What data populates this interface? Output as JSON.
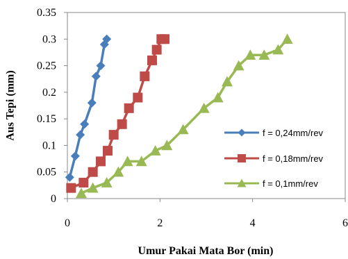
{
  "chart_data": {
    "type": "line",
    "xlabel": "Umur Pakai Mata Bor (min)",
    "ylabel": "Aus Tepi (mm)",
    "xlim": [
      0,
      6
    ],
    "ylim": [
      0,
      0.35
    ],
    "xticks": [
      0,
      2,
      4,
      6
    ],
    "yticks": [
      0,
      0.05,
      0.1,
      0.15,
      0.2,
      0.25,
      0.3,
      0.35
    ],
    "xtick_labels": [
      "0",
      "2",
      "4",
      "6"
    ],
    "ytick_labels": [
      "0",
      "0.05",
      "0.1",
      "0.15",
      "0.2",
      "0.25",
      "0.3",
      "0.35"
    ],
    "grid": false,
    "legend_position": "right",
    "series": [
      {
        "name": "f = 0,24mm/rev",
        "color": "#4a7ebb",
        "marker": "diamond",
        "x": [
          0.05,
          0.17,
          0.28,
          0.37,
          0.53,
          0.62,
          0.72,
          0.8,
          0.85
        ],
        "y": [
          0.04,
          0.08,
          0.12,
          0.14,
          0.18,
          0.23,
          0.25,
          0.29,
          0.3
        ]
      },
      {
        "name": "f = 0,18mm/rev",
        "color": "#be4b48",
        "marker": "square",
        "x": [
          0.08,
          0.35,
          0.55,
          0.72,
          0.87,
          1.0,
          1.18,
          1.33,
          1.52,
          1.67,
          1.83,
          1.93,
          2.03,
          2.1
        ],
        "y": [
          0.02,
          0.03,
          0.05,
          0.07,
          0.09,
          0.12,
          0.14,
          0.17,
          0.19,
          0.23,
          0.26,
          0.28,
          0.3,
          0.3
        ]
      },
      {
        "name": "f = 0,1mm/rev",
        "color": "#98b954",
        "marker": "triangle",
        "x": [
          0.3,
          0.55,
          0.85,
          1.1,
          1.3,
          1.6,
          1.9,
          2.15,
          2.5,
          2.95,
          3.25,
          3.45,
          3.7,
          3.95,
          4.25,
          4.55,
          4.75
        ],
        "y": [
          0.01,
          0.02,
          0.03,
          0.05,
          0.07,
          0.07,
          0.09,
          0.1,
          0.13,
          0.17,
          0.19,
          0.22,
          0.25,
          0.27,
          0.27,
          0.28,
          0.3
        ]
      }
    ]
  }
}
